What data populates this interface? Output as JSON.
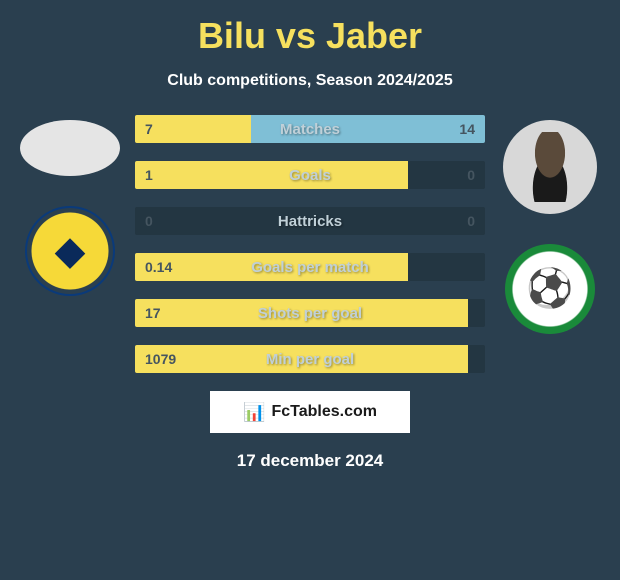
{
  "title": "Bilu vs Jaber",
  "subtitle": "Club competitions, Season 2024/2025",
  "colors": {
    "background": "#2a3f4f",
    "title": "#f6e05e",
    "bar_left": "#f6e05e",
    "bar_right": "#7fbfd6",
    "bar_track": "#233642",
    "label_text": "#c0d0d8",
    "value_text": "#455560"
  },
  "bars": [
    {
      "label": "Matches",
      "left": "7",
      "right": "14",
      "left_pct": 33,
      "right_pct": 67
    },
    {
      "label": "Goals",
      "left": "1",
      "right": "0",
      "left_pct": 78,
      "right_pct": 0
    },
    {
      "label": "Hattricks",
      "left": "0",
      "right": "0",
      "left_pct": 0,
      "right_pct": 0
    },
    {
      "label": "Goals per match",
      "left": "0.14",
      "right": "",
      "left_pct": 78,
      "right_pct": 0
    },
    {
      "label": "Shots per goal",
      "left": "17",
      "right": "",
      "left_pct": 95,
      "right_pct": 0
    },
    {
      "label": "Min per goal",
      "left": "1079",
      "right": "",
      "left_pct": 95,
      "right_pct": 0
    }
  ],
  "footer": {
    "icon": "📊",
    "brand": "FcTables.com"
  },
  "date": "17 december 2024"
}
